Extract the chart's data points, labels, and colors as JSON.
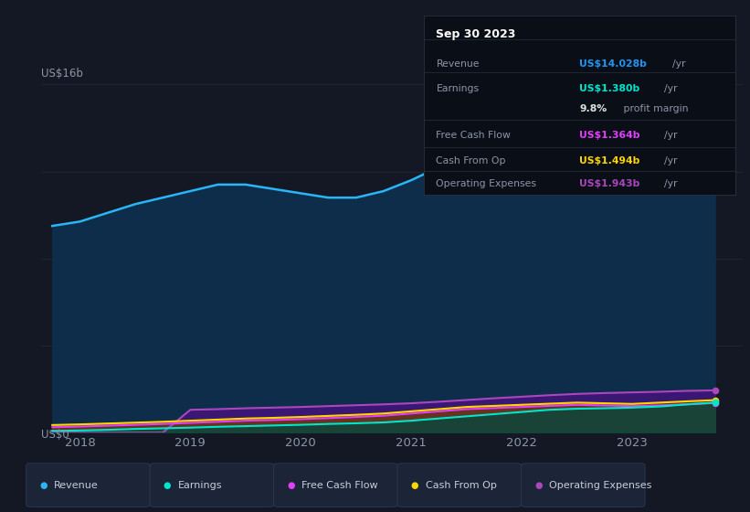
{
  "background_color": "#141824",
  "plot_bg_color": "#141824",
  "x_ticks": [
    2018,
    2019,
    2020,
    2021,
    2022,
    2023
  ],
  "ylim_max": 16,
  "tooltip": {
    "date": "Sep 30 2023",
    "rows": [
      {
        "label": "Revenue",
        "value": "US$14.028b",
        "value_color": "#2196f3",
        "unit": "/yr"
      },
      {
        "label": "Earnings",
        "value": "US$1.380b",
        "value_color": "#00e5cc",
        "unit": "/yr"
      },
      {
        "label": "",
        "value": "9.8%",
        "value_color": "#e0e0e0",
        "unit": " profit margin"
      },
      {
        "label": "Free Cash Flow",
        "value": "US$1.364b",
        "value_color": "#e040fb",
        "unit": "/yr"
      },
      {
        "label": "Cash From Op",
        "value": "US$1.494b",
        "value_color": "#ffd600",
        "unit": "/yr"
      },
      {
        "label": "Operating Expenses",
        "value": "US$1.943b",
        "value_color": "#ab47bc",
        "unit": "/yr"
      }
    ]
  },
  "series": {
    "revenue": {
      "color": "#29b6f6",
      "fill_color": "#0d2d4a",
      "label": "Revenue",
      "data_x": [
        2017.75,
        2018.0,
        2018.25,
        2018.5,
        2018.75,
        2019.0,
        2019.25,
        2019.5,
        2019.75,
        2020.0,
        2020.25,
        2020.5,
        2020.75,
        2021.0,
        2021.25,
        2021.5,
        2021.75,
        2022.0,
        2022.25,
        2022.5,
        2022.75,
        2023.0,
        2023.25,
        2023.5,
        2023.75
      ],
      "data_y": [
        9.5,
        9.7,
        10.1,
        10.5,
        10.8,
        11.1,
        11.4,
        11.4,
        11.2,
        11.0,
        10.8,
        10.8,
        11.1,
        11.6,
        12.2,
        12.8,
        13.2,
        13.7,
        14.1,
        14.0,
        13.6,
        13.3,
        13.3,
        13.7,
        14.0
      ]
    },
    "earnings": {
      "color": "#00e5cc",
      "fill_alpha": 0.5,
      "label": "Earnings",
      "data_x": [
        2017.75,
        2018.0,
        2018.25,
        2018.5,
        2018.75,
        2019.0,
        2019.25,
        2019.5,
        2019.75,
        2020.0,
        2020.25,
        2020.5,
        2020.75,
        2021.0,
        2021.25,
        2021.5,
        2021.75,
        2022.0,
        2022.25,
        2022.5,
        2022.75,
        2023.0,
        2023.25,
        2023.5,
        2023.75
      ],
      "data_y": [
        0.08,
        0.1,
        0.13,
        0.17,
        0.2,
        0.23,
        0.27,
        0.3,
        0.33,
        0.36,
        0.4,
        0.43,
        0.47,
        0.55,
        0.65,
        0.75,
        0.85,
        0.95,
        1.05,
        1.1,
        1.12,
        1.15,
        1.2,
        1.3,
        1.38
      ]
    },
    "free_cash_flow": {
      "color": "#e040fb",
      "label": "Free Cash Flow",
      "data_x": [
        2017.75,
        2018.0,
        2018.25,
        2018.5,
        2018.75,
        2019.0,
        2019.25,
        2019.5,
        2019.75,
        2020.0,
        2020.25,
        2020.5,
        2020.75,
        2021.0,
        2021.25,
        2021.5,
        2021.75,
        2022.0,
        2022.25,
        2022.5,
        2022.75,
        2023.0,
        2023.25,
        2023.5,
        2023.75
      ],
      "data_y": [
        0.25,
        0.28,
        0.32,
        0.36,
        0.4,
        0.45,
        0.5,
        0.55,
        0.58,
        0.62,
        0.67,
        0.72,
        0.78,
        0.88,
        0.98,
        1.08,
        1.13,
        1.18,
        1.23,
        1.28,
        1.25,
        1.22,
        1.25,
        1.3,
        1.364
      ]
    },
    "cash_from_op": {
      "color": "#ffd600",
      "label": "Cash From Op",
      "data_x": [
        2017.75,
        2018.0,
        2018.25,
        2018.5,
        2018.75,
        2019.0,
        2019.25,
        2019.5,
        2019.75,
        2020.0,
        2020.25,
        2020.5,
        2020.75,
        2021.0,
        2021.25,
        2021.5,
        2021.75,
        2022.0,
        2022.25,
        2022.5,
        2022.75,
        2023.0,
        2023.25,
        2023.5,
        2023.75
      ],
      "data_y": [
        0.35,
        0.38,
        0.42,
        0.46,
        0.5,
        0.55,
        0.6,
        0.65,
        0.68,
        0.72,
        0.77,
        0.82,
        0.88,
        0.98,
        1.08,
        1.18,
        1.23,
        1.28,
        1.33,
        1.38,
        1.35,
        1.32,
        1.38,
        1.44,
        1.494
      ]
    },
    "operating_expenses": {
      "color": "#ab47bc",
      "label": "Operating Expenses",
      "data_x": [
        2017.75,
        2018.0,
        2018.25,
        2018.5,
        2018.75,
        2019.0,
        2019.25,
        2019.5,
        2019.75,
        2020.0,
        2020.25,
        2020.5,
        2020.75,
        2021.0,
        2021.25,
        2021.5,
        2021.75,
        2022.0,
        2022.25,
        2022.5,
        2022.75,
        2023.0,
        2023.25,
        2023.5,
        2023.75
      ],
      "data_y": [
        0.0,
        0.0,
        0.0,
        0.0,
        0.0,
        1.05,
        1.08,
        1.12,
        1.15,
        1.18,
        1.22,
        1.26,
        1.3,
        1.35,
        1.42,
        1.5,
        1.58,
        1.65,
        1.72,
        1.78,
        1.82,
        1.85,
        1.88,
        1.92,
        1.943
      ]
    }
  },
  "legend": [
    {
      "label": "Revenue",
      "color": "#29b6f6"
    },
    {
      "label": "Earnings",
      "color": "#00e5cc"
    },
    {
      "label": "Free Cash Flow",
      "color": "#e040fb"
    },
    {
      "label": "Cash From Op",
      "color": "#ffd600"
    },
    {
      "label": "Operating Expenses",
      "color": "#ab47bc"
    }
  ],
  "grid_color": "#1e2535",
  "text_color": "#8a96a8",
  "tooltip_bg": "#0a0e17",
  "tooltip_border": "#2a3040"
}
